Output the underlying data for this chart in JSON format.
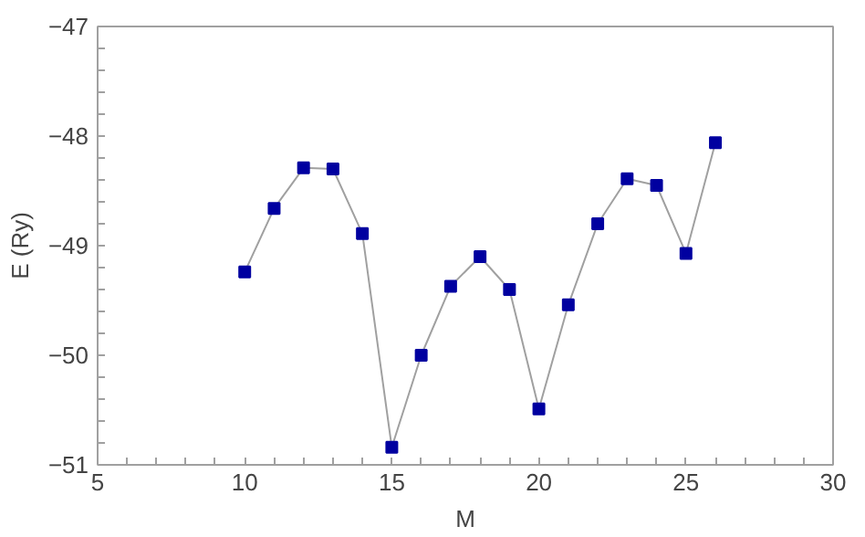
{
  "chart_data": {
    "type": "line",
    "xlabel": "M",
    "ylabel": "E (Ry)",
    "x": [
      10,
      11,
      12,
      13,
      14,
      15,
      16,
      17,
      18,
      19,
      20,
      21,
      22,
      23,
      24,
      25,
      26
    ],
    "series": [
      {
        "color": "#0000a0",
        "values": [
          -49.24,
          -48.66,
          -48.29,
          -48.3,
          -48.89,
          -50.84,
          -50.0,
          -49.37,
          -49.1,
          -49.4,
          -50.49,
          -49.54,
          -48.8,
          -48.39,
          -48.45,
          -49.07,
          -48.06
        ]
      }
    ],
    "xlim": [
      5,
      30
    ],
    "ylim": [
      -51,
      -47
    ],
    "xticks": [
      5,
      10,
      15,
      20,
      25,
      30
    ],
    "yticks": [
      -51,
      -50,
      -49,
      -48,
      -47
    ],
    "marker": "square",
    "line_style": "solid",
    "grid": false
  }
}
